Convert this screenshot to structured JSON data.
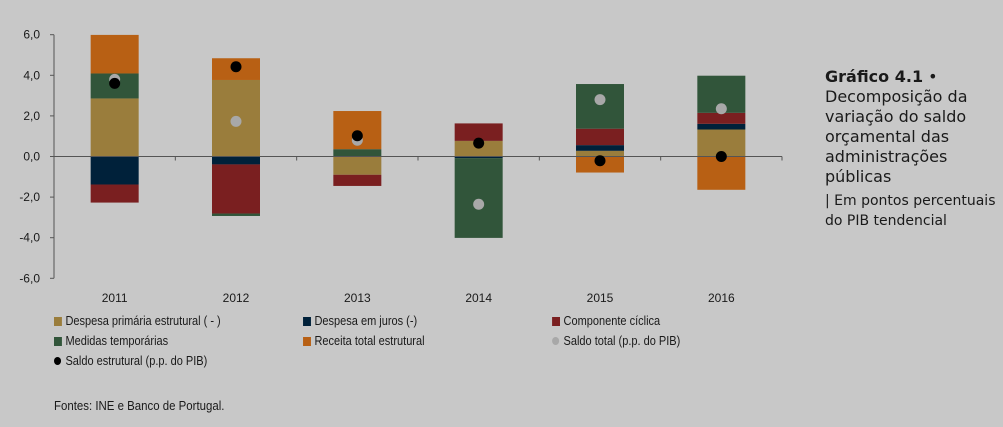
{
  "chart_data": {
    "type": "bar",
    "stacked": true,
    "title": "Gráfico 4.1 • Decomposição da variação do saldo orçamental das administrações públicas",
    "subtitle": "| Em pontos percentuais do PIB tendencial",
    "categories": [
      "2011",
      "2012",
      "2013",
      "2014",
      "2015",
      "2016"
    ],
    "ylim": [
      -6,
      6
    ],
    "yticks": [
      6,
      4,
      2,
      0,
      -2,
      -4,
      -6
    ],
    "ytick_labels": [
      "6,0",
      "4,0",
      "2,0",
      "0,0",
      "-2,0",
      "-4,0",
      "-6,0"
    ],
    "xlabel": "",
    "ylabel": "",
    "series": [
      {
        "name": "Despesa primária estrutural ( - )",
        "color": "#9a7d3c",
        "values": [
          2.86,
          3.77,
          -0.9,
          0.77,
          0.28,
          1.33
        ]
      },
      {
        "name": "Despesa em juros (-)",
        "color": "#00213a",
        "values": [
          -1.38,
          -0.39,
          0.0,
          -0.08,
          0.28,
          0.28
        ]
      },
      {
        "name": "Componente cíclica",
        "color": "#7a1f20",
        "values": [
          -0.89,
          -2.42,
          -0.55,
          0.86,
          0.81,
          0.54
        ]
      },
      {
        "name": "Medidas temporárias",
        "color": "#31553a",
        "values": [
          1.23,
          -0.12,
          0.36,
          -3.93,
          2.2,
          1.83
        ]
      },
      {
        "name": "Receita total estrutural",
        "color": "#b86014",
        "values": [
          1.9,
          1.07,
          1.88,
          0.0,
          -0.79,
          -1.64
        ]
      }
    ],
    "markers": [
      {
        "name": "Saldo total (p.p. do PIB)",
        "color": "#a8a8a8",
        "values": [
          3.8,
          1.73,
          0.8,
          -2.35,
          2.8,
          2.35
        ]
      },
      {
        "name": "Saldo estrutural (p.p. do PIB)",
        "color": "#000000",
        "values": [
          3.6,
          4.42,
          1.02,
          0.66,
          -0.21,
          0.0
        ]
      }
    ],
    "legend_position": "bottom"
  },
  "side": {
    "title_bold": "Gráfico 4.1",
    "bullet": "•",
    "title_rest": "Decomposição da variação do saldo orçamental das administrações públicas",
    "subtitle": "| Em pontos percentuais do PIB tendencial"
  },
  "source": "Fontes: INE e Banco de Portugal."
}
